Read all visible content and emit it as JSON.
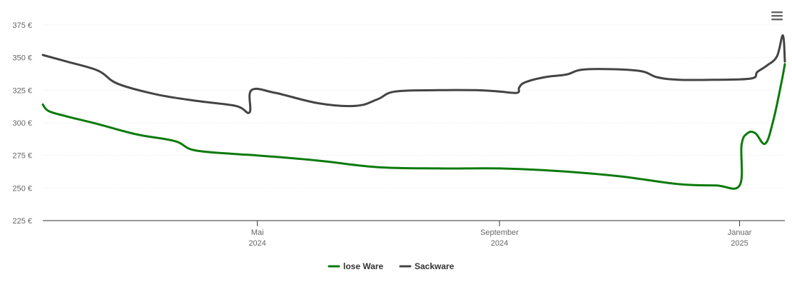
{
  "chart_data": {
    "type": "line",
    "title": "",
    "xlabel": "",
    "ylabel": "",
    "ylim": [
      225,
      375
    ],
    "yticks": [
      {
        "value": 225,
        "label": "225 €"
      },
      {
        "value": 250,
        "label": "250 €"
      },
      {
        "value": 275,
        "label": "275 €"
      },
      {
        "value": 300,
        "label": "300 €"
      },
      {
        "value": 325,
        "label": "325 €"
      },
      {
        "value": 350,
        "label": "350 €"
      },
      {
        "value": 375,
        "label": "375 €"
      }
    ],
    "xlim": [
      "2024-01-13",
      "2025-01-24"
    ],
    "xticks": [
      {
        "date": "2024-05-01",
        "line1": "Mai",
        "line2": "2024"
      },
      {
        "date": "2024-09-01",
        "line1": "September",
        "line2": "2024"
      },
      {
        "date": "2025-01-01",
        "line1": "Januar",
        "line2": "2025"
      }
    ],
    "grid": true,
    "legend_position": "bottom-center",
    "series": [
      {
        "name": "lose Ware",
        "color": "#0a7a0a",
        "points": [
          [
            "2024-01-13",
            314
          ],
          [
            "2024-01-16",
            309
          ],
          [
            "2024-01-25",
            305
          ],
          [
            "2024-02-10",
            299
          ],
          [
            "2024-03-01",
            291
          ],
          [
            "2024-03-20",
            286
          ],
          [
            "2024-03-30",
            279
          ],
          [
            "2024-04-20",
            276
          ],
          [
            "2024-05-01",
            275
          ],
          [
            "2024-06-01",
            271
          ],
          [
            "2024-07-01",
            266
          ],
          [
            "2024-08-01",
            265
          ],
          [
            "2024-09-01",
            265
          ],
          [
            "2024-10-01",
            263
          ],
          [
            "2024-11-01",
            259
          ],
          [
            "2024-12-01",
            253
          ],
          [
            "2024-12-20",
            252
          ],
          [
            "2025-01-01",
            252
          ],
          [
            "2025-01-02",
            283
          ],
          [
            "2025-01-05",
            292
          ],
          [
            "2025-01-09",
            292
          ],
          [
            "2025-01-14",
            284
          ],
          [
            "2025-01-18",
            301
          ],
          [
            "2025-01-22",
            329
          ],
          [
            "2025-01-24",
            345
          ]
        ]
      },
      {
        "name": "Sackware",
        "color": "#444444",
        "points": [
          [
            "2024-01-13",
            352
          ],
          [
            "2024-01-25",
            347
          ],
          [
            "2024-02-10",
            340
          ],
          [
            "2024-02-20",
            330
          ],
          [
            "2024-03-10",
            322
          ],
          [
            "2024-03-30",
            317
          ],
          [
            "2024-04-20",
            313
          ],
          [
            "2024-04-27",
            308
          ],
          [
            "2024-04-28",
            325
          ],
          [
            "2024-05-10",
            323
          ],
          [
            "2024-06-01",
            315
          ],
          [
            "2024-06-20",
            313
          ],
          [
            "2024-07-01",
            318
          ],
          [
            "2024-07-10",
            324
          ],
          [
            "2024-08-01",
            325
          ],
          [
            "2024-08-20",
            325
          ],
          [
            "2024-09-01",
            324
          ],
          [
            "2024-09-10",
            323
          ],
          [
            "2024-09-11",
            327
          ],
          [
            "2024-09-14",
            331
          ],
          [
            "2024-09-24",
            335
          ],
          [
            "2024-10-05",
            337
          ],
          [
            "2024-10-15",
            341
          ],
          [
            "2024-11-10",
            340
          ],
          [
            "2024-11-20",
            335
          ],
          [
            "2024-12-01",
            333
          ],
          [
            "2024-12-20",
            333
          ],
          [
            "2025-01-07",
            334
          ],
          [
            "2025-01-10",
            339
          ],
          [
            "2025-01-15",
            344
          ],
          [
            "2025-01-20",
            351
          ],
          [
            "2025-01-23",
            367
          ],
          [
            "2025-01-24",
            347
          ]
        ]
      }
    ]
  },
  "menu": {
    "icon": "hamburger-menu-icon"
  },
  "colors": {
    "grid": "#e6e6e6",
    "axis": "#333333",
    "text": "#666666"
  }
}
